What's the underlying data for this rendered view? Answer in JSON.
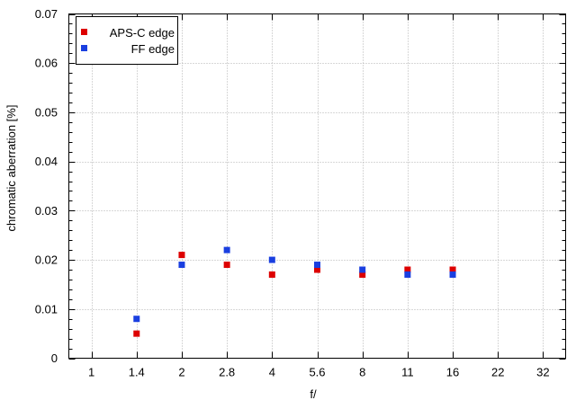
{
  "chart_data": {
    "type": "scatter",
    "title": "",
    "xlabel": "f/",
    "ylabel": "chromatic aberration [%]",
    "x_categories": [
      "1",
      "1.4",
      "2",
      "2.8",
      "4",
      "5.6",
      "8",
      "11",
      "16",
      "22",
      "32"
    ],
    "ylim": [
      0,
      0.07
    ],
    "y_ticks": [
      "0",
      "0.01",
      "0.02",
      "0.03",
      "0.04",
      "0.05",
      "0.06",
      "0.07"
    ],
    "grid": true,
    "legend_position": "top-left",
    "series": [
      {
        "name": "APS-C edge",
        "color": "#dd0000",
        "points": [
          {
            "x": "1.4",
            "y": 0.005
          },
          {
            "x": "2",
            "y": 0.021
          },
          {
            "x": "2.8",
            "y": 0.019
          },
          {
            "x": "4",
            "y": 0.017
          },
          {
            "x": "5.6",
            "y": 0.018
          },
          {
            "x": "8",
            "y": 0.017
          },
          {
            "x": "11",
            "y": 0.018
          },
          {
            "x": "16",
            "y": 0.018
          }
        ]
      },
      {
        "name": "FF edge",
        "color": "#1a3fe0",
        "points": [
          {
            "x": "1.4",
            "y": 0.008
          },
          {
            "x": "2",
            "y": 0.019
          },
          {
            "x": "2.8",
            "y": 0.022
          },
          {
            "x": "4",
            "y": 0.02
          },
          {
            "x": "5.6",
            "y": 0.019
          },
          {
            "x": "8",
            "y": 0.018
          },
          {
            "x": "11",
            "y": 0.017
          },
          {
            "x": "16",
            "y": 0.017
          }
        ]
      }
    ]
  }
}
